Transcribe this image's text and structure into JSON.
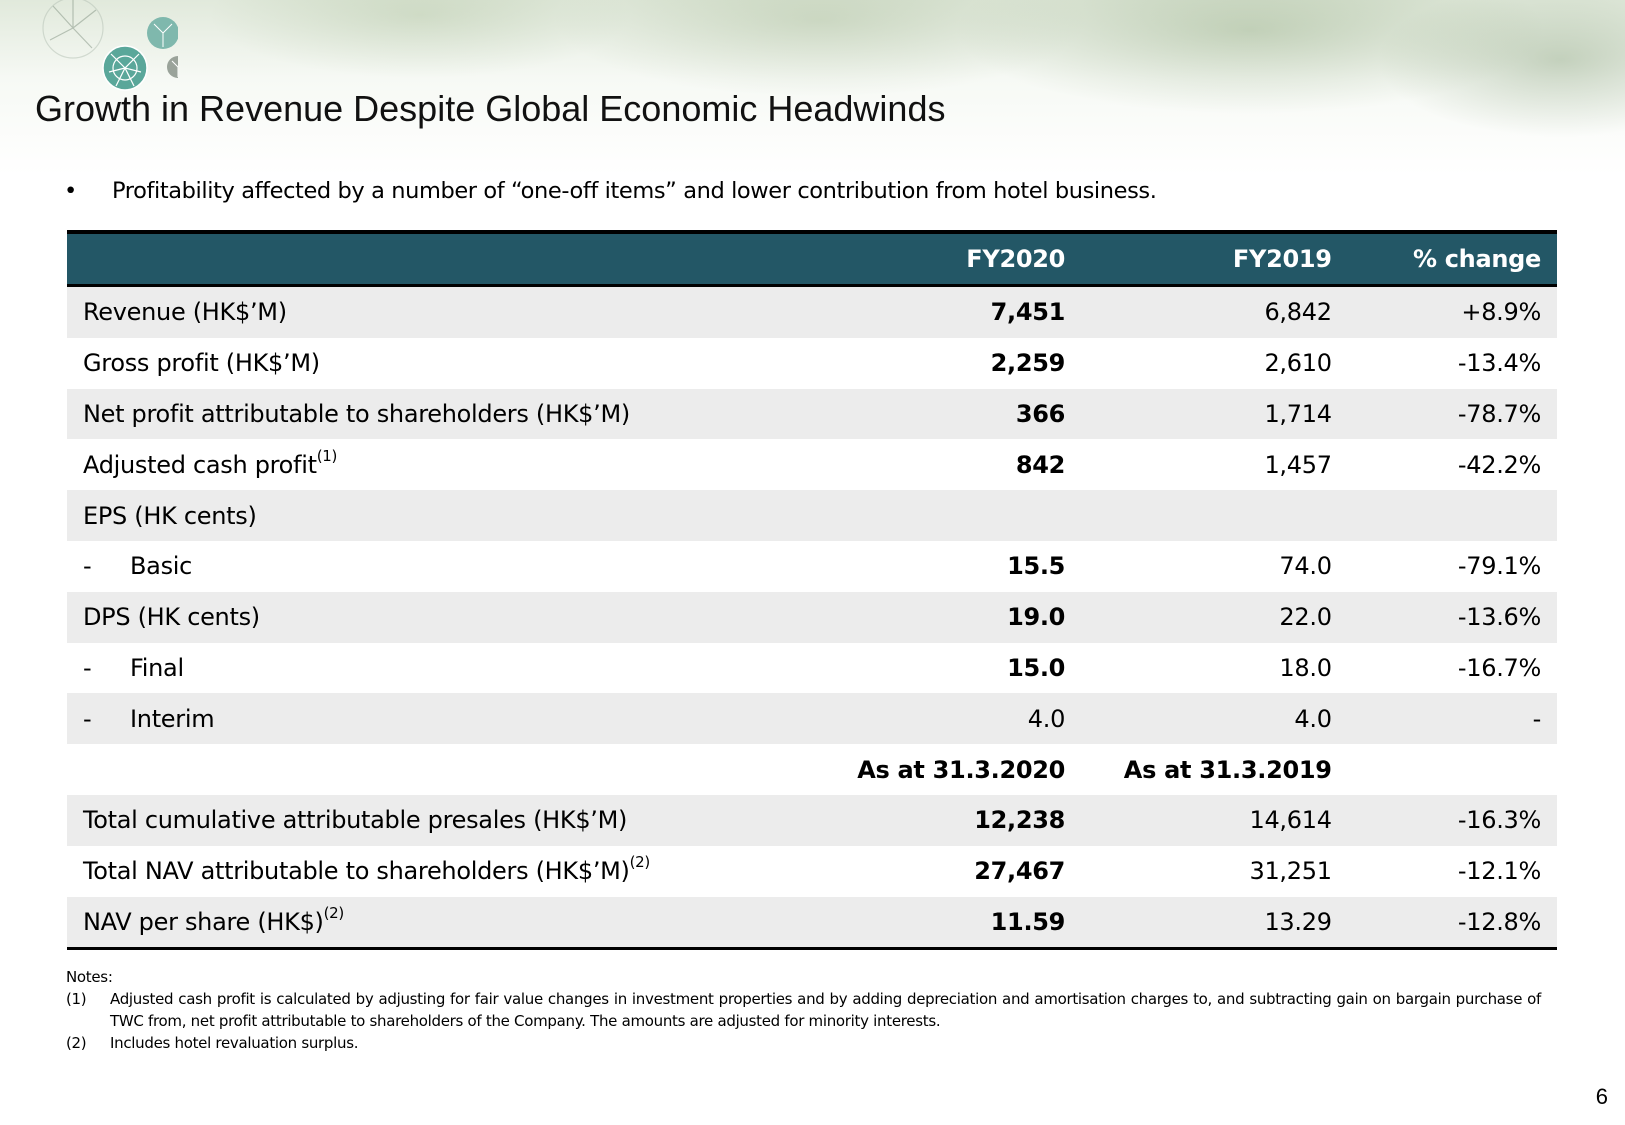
{
  "title": "Growth in Revenue Despite Global Economic Headwinds",
  "bullet": "Profitability affected by a number of “one-off items” and lower contribution from hotel business.",
  "table": {
    "headers": [
      "",
      "FY2020",
      "FY2019",
      "% change"
    ],
    "rows": [
      {
        "label": "Revenue (HK$’M)",
        "fy2020": "7,451",
        "fy2019": "6,842",
        "change": "+8.9%"
      },
      {
        "label": "Gross profit (HK$’M)",
        "fy2020": "2,259",
        "fy2019": "2,610",
        "change": "-13.4%"
      },
      {
        "label": "Net profit attributable to shareholders (HK$’M)",
        "fy2020": "366",
        "fy2019": "1,714",
        "change": "-78.7%"
      },
      {
        "label": "Adjusted cash profit",
        "sup": "(1)",
        "fy2020": "842",
        "fy2019": "1,457",
        "change": "-42.2%"
      },
      {
        "label": "EPS (HK cents)",
        "fy2020": "",
        "fy2019": "",
        "change": ""
      },
      {
        "dash": "-",
        "label": "Basic",
        "fy2020": "15.5",
        "fy2019": "74.0",
        "change": "-79.1%"
      },
      {
        "label": "DPS (HK cents)",
        "fy2020": "19.0",
        "fy2019": "22.0",
        "change": "-13.6%"
      },
      {
        "dash": "-",
        "label": "Final",
        "fy2020": "15.0",
        "fy2019": "18.0",
        "change": "-16.7%"
      },
      {
        "dash": "-",
        "label": "Interim",
        "fy2020": "4.0",
        "fy2019": "4.0",
        "change": "-"
      },
      {
        "label": "",
        "fy2020": "As at 31.3.2020",
        "fy2019": "As at 31.3.2019",
        "change": ""
      },
      {
        "label": "Total cumulative attributable presales (HK$’M)",
        "fy2020": "12,238",
        "fy2019": "14,614",
        "change": "-16.3%"
      },
      {
        "label": "Total NAV attributable to shareholders (HK$’M)",
        "sup": "(2)",
        "fy2020": "27,467",
        "fy2019": "31,251",
        "change": "-12.1%"
      },
      {
        "label": "NAV per share (HK$)",
        "sup": "(2)",
        "fy2020": "11.59",
        "fy2019": "13.29",
        "change": "-12.8%"
      }
    ]
  },
  "notes": {
    "heading": "Notes:",
    "items": [
      {
        "num": "(1)",
        "text": "Adjusted cash profit is calculated by adjusting for fair value changes in investment properties and by adding depreciation and amortisation charges to, and subtracting gain on bargain purchase of TWC from, net profit attributable to shareholders of the Company. The amounts are adjusted for minority interests."
      },
      {
        "num": "(2)",
        "text": "Includes hotel revaluation surplus."
      }
    ]
  },
  "page_number": "6",
  "colors": {
    "header_bg": "#235766",
    "row_shade": "#ececec",
    "accent_teal": "#5aa79a"
  }
}
